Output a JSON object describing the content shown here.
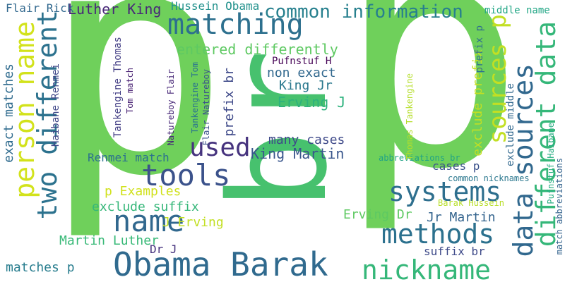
{
  "words": [
    {
      "text": "p",
      "color": "#6fd05b"
    },
    {
      "text": "p",
      "color": "#6fd05b"
    },
    {
      "text": "br",
      "color": "#47c16e"
    },
    {
      "text": "Obama Barak",
      "color": "#306a8e"
    },
    {
      "text": "nickname",
      "color": "#35b779"
    },
    {
      "text": "methods",
      "color": "#2c718e"
    },
    {
      "text": "tools",
      "color": "#3b528b"
    },
    {
      "text": "systems",
      "color": "#2e6f8e"
    },
    {
      "text": "name",
      "color": "#31688e"
    },
    {
      "text": "matching",
      "color": "#2d708e"
    },
    {
      "text": "used",
      "color": "#46337e"
    },
    {
      "text": "person name",
      "color": "#d2e21b"
    },
    {
      "text": "two different",
      "color": "#2c728e"
    },
    {
      "text": "data sources",
      "color": "#31688e"
    },
    {
      "text": "different data",
      "color": "#35b779"
    },
    {
      "text": "sources p",
      "color": "#c2df23"
    },
    {
      "text": "common information",
      "color": "#27808e"
    },
    {
      "text": "Luther King",
      "color": "#482878"
    },
    {
      "text": "Hussein Obama",
      "color": "#21918c"
    },
    {
      "text": "Flair Rick",
      "color": "#31688e"
    },
    {
      "text": "entered differently",
      "color": "#5ec962"
    },
    {
      "text": "non exact",
      "color": "#31688e"
    },
    {
      "text": "Pufnstuf H",
      "color": "#440154"
    },
    {
      "text": "King Jr",
      "color": "#2a788e"
    },
    {
      "text": "Erving J",
      "color": "#2db27d"
    },
    {
      "text": "many cases",
      "color": "#3e4989"
    },
    {
      "text": "King Martin",
      "color": "#39568c"
    },
    {
      "text": "cases p",
      "color": "#3b528b"
    },
    {
      "text": "Renmei match",
      "color": "#2c718e"
    },
    {
      "text": "p Examples",
      "color": "#d0e11c"
    },
    {
      "text": "exclude suffix",
      "color": "#35b779"
    },
    {
      "text": "J Erving",
      "color": "#c2df23"
    },
    {
      "text": "Martin Luther",
      "color": "#38b977"
    },
    {
      "text": "Dr J",
      "color": "#46327e"
    },
    {
      "text": "Erving Dr",
      "color": "#5ec962"
    },
    {
      "text": "Jr Martin",
      "color": "#33638d"
    },
    {
      "text": "Barak Hussein",
      "color": "#b8de29"
    },
    {
      "text": "suffix br",
      "color": "#3e4a89"
    },
    {
      "text": "matches p",
      "color": "#287d8e"
    },
    {
      "text": "middle name",
      "color": "#21a685"
    },
    {
      "text": "common nicknames",
      "color": "#2a778e"
    },
    {
      "text": "abbreviations br",
      "color": "#20a386"
    },
    {
      "text": "exact matches",
      "color": "#2f6b8e"
    },
    {
      "text": "Haibane Renmei",
      "color": "#3f4788"
    },
    {
      "text": "Tankengine Thomas",
      "color": "#433e85"
    },
    {
      "text": "Tom match",
      "color": "#482173"
    },
    {
      "text": "Natureboy Flair",
      "color": "#482878"
    },
    {
      "text": "Tankengine Tom",
      "color": "#2b758e"
    },
    {
      "text": "Flair Natureboy",
      "color": "#3b528b"
    },
    {
      "text": "prefix br",
      "color": "#3e4989"
    },
    {
      "text": "exclude prefix",
      "color": "#c2df23"
    },
    {
      "text": "Thomas Tankengine",
      "color": "#b5de2b"
    },
    {
      "text": "exclude middle",
      "color": "#31688e"
    },
    {
      "text": "match abbreviations",
      "color": "#33638d"
    },
    {
      "text": "Pufnstuf Haibane",
      "color": "#26ad81"
    },
    {
      "text": "prefix p",
      "color": "#2e6f8e"
    }
  ]
}
